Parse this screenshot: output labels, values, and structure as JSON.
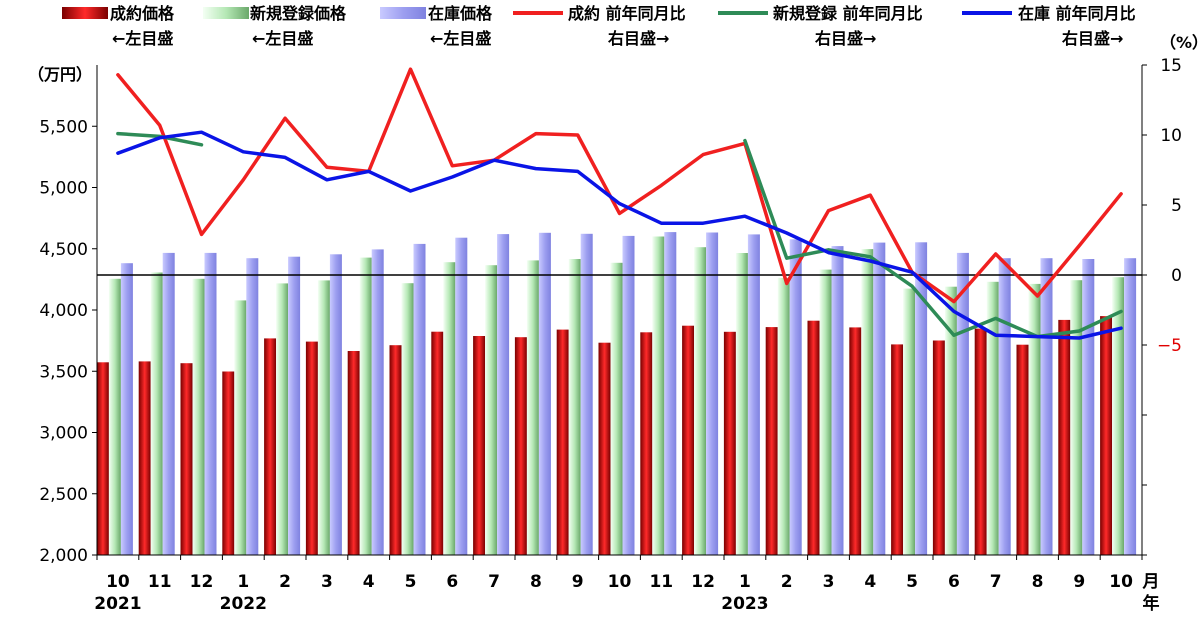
{
  "chart_data": {
    "type": "bar",
    "categories": [
      "10",
      "11",
      "12",
      "1",
      "2",
      "3",
      "4",
      "5",
      "6",
      "7",
      "8",
      "9",
      "10",
      "11",
      "12",
      "1",
      "2",
      "3",
      "4",
      "5",
      "6",
      "7",
      "8",
      "9",
      "10"
    ],
    "year_labels": [
      "2021",
      "",
      "",
      "2022",
      "",
      "",
      "",
      "",
      "",
      "",
      "",
      "",
      "",
      "",
      "",
      "2023",
      "",
      "",
      "",
      "",
      "",
      "",
      "",
      "",
      ""
    ],
    "month_unit": "月",
    "year_unit": "年",
    "left_unit": "（万円）",
    "right_unit": "（%）",
    "left_axis": {
      "ylim": [
        2000,
        6000
      ],
      "ticks": [
        "2,000",
        "2,500",
        "3,000",
        "3,500",
        "4,000",
        "4,500",
        "5,000",
        "5,500"
      ],
      "tick_values": [
        2000,
        2500,
        3000,
        3500,
        4000,
        4500,
        5000,
        5500
      ]
    },
    "right_axis": {
      "ylim": [
        -20,
        15
      ],
      "ticks": [
        "15",
        "10",
        "5",
        "0",
        "−5"
      ],
      "tick_values": [
        15,
        10,
        5,
        0,
        -5
      ]
    },
    "zero_line": 0,
    "bar_series": [
      {
        "name": "成約価格",
        "sub": "←左目盛",
        "color": "#e02020",
        "values": [
          3573,
          3580,
          3566,
          3498,
          3768,
          3742,
          3665,
          3713,
          3823,
          3788,
          3778,
          3840,
          3733,
          3818,
          3872,
          3822,
          3860,
          3913,
          3858,
          3719,
          3751,
          3848,
          3717,
          3919,
          3950
        ]
      },
      {
        "name": "新規登録価格",
        "sub": "←左目盛",
        "color": "#a8e0a8",
        "values": [
          4255,
          4306,
          4255,
          4078,
          4217,
          4242,
          4428,
          4219,
          4390,
          4366,
          4405,
          4416,
          4385,
          4600,
          4513,
          4465,
          4262,
          4330,
          4497,
          4175,
          4190,
          4230,
          4213,
          4243,
          4268
        ]
      },
      {
        "name": "在庫価格",
        "sub": "←左目盛",
        "color": "#9d9ff0",
        "values": [
          4382,
          4466,
          4466,
          4423,
          4435,
          4455,
          4495,
          4540,
          4590,
          4620,
          4630,
          4622,
          4605,
          4636,
          4633,
          4617,
          4577,
          4522,
          4550,
          4553,
          4466,
          4423,
          4423,
          4416,
          4423
        ]
      }
    ],
    "line_series": [
      {
        "name": "成約 前年同月比",
        "sub": "右目盛→",
        "color": "#f02020",
        "values": [
          14.3,
          10.7,
          2.9,
          6.8,
          11.2,
          7.7,
          7.4,
          14.7,
          7.8,
          8.2,
          10.1,
          10.0,
          4.4,
          6.4,
          8.6,
          9.4,
          -0.6,
          4.6,
          5.7,
          0.2,
          -1.9,
          1.5,
          -1.5,
          2.1,
          5.8
        ]
      },
      {
        "name": "新規登録 前年同月比",
        "sub": "右目盛→",
        "color": "#2e8b57",
        "values": [
          10.1,
          9.9,
          9.3,
          null,
          null,
          null,
          null,
          null,
          null,
          null,
          null,
          null,
          null,
          null,
          null,
          9.6,
          1.2,
          1.8,
          1.3,
          -0.8,
          -4.3,
          -3.1,
          -4.4,
          -4.0,
          -2.6
        ]
      },
      {
        "name": "在庫 前年同月比",
        "sub": "右目盛→",
        "color": "#0a14e6",
        "values": [
          8.7,
          9.8,
          10.2,
          8.8,
          8.4,
          6.8,
          7.4,
          6.0,
          7.0,
          8.2,
          7.6,
          7.4,
          5.1,
          3.7,
          3.7,
          4.2,
          3.0,
          1.6,
          1.0,
          0.2,
          -2.6,
          -4.3,
          -4.4,
          -4.5,
          -3.8
        ]
      }
    ]
  }
}
